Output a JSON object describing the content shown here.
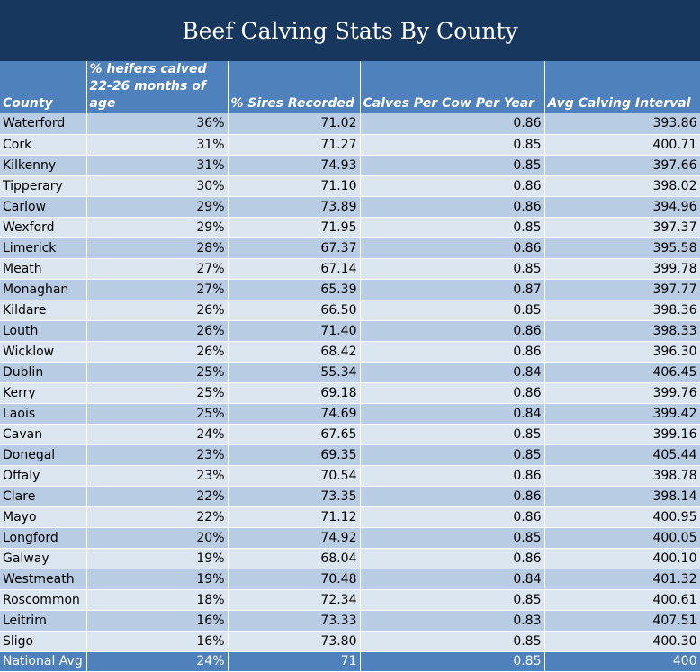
{
  "title": "Beef Calving Stats By County",
  "chart_data": {
    "type": "table",
    "title": "Beef Calving Stats By County",
    "columns": [
      "County",
      "% heifers calved 22-26 months of age",
      "% Sires Recorded",
      "Calves Per Cow Per Year",
      "Avg Calving Interval"
    ],
    "rows": [
      [
        "Waterford",
        "36%",
        "71.02",
        "0.86",
        "393.86"
      ],
      [
        "Cork",
        "31%",
        "71.27",
        "0.85",
        "400.71"
      ],
      [
        "Kilkenny",
        "31%",
        "74.93",
        "0.85",
        "397.66"
      ],
      [
        "Tipperary",
        "30%",
        "71.10",
        "0.86",
        "398.02"
      ],
      [
        "Carlow",
        "29%",
        "73.89",
        "0.86",
        "394.96"
      ],
      [
        "Wexford",
        "29%",
        "71.95",
        "0.85",
        "397.37"
      ],
      [
        "Limerick",
        "28%",
        "67.37",
        "0.86",
        "395.58"
      ],
      [
        "Meath",
        "27%",
        "67.14",
        "0.85",
        "399.78"
      ],
      [
        "Monaghan",
        "27%",
        "65.39",
        "0.87",
        "397.77"
      ],
      [
        "Kildare",
        "26%",
        "66.50",
        "0.85",
        "398.36"
      ],
      [
        "Louth",
        "26%",
        "71.40",
        "0.86",
        "398.33"
      ],
      [
        "Wicklow",
        "26%",
        "68.42",
        "0.86",
        "396.30"
      ],
      [
        "Dublin",
        "25%",
        "55.34",
        "0.84",
        "406.45"
      ],
      [
        "Kerry",
        "25%",
        "69.18",
        "0.86",
        "399.76"
      ],
      [
        "Laois",
        "25%",
        "74.69",
        "0.84",
        "399.42"
      ],
      [
        "Cavan",
        "24%",
        "67.65",
        "0.85",
        "399.16"
      ],
      [
        "Donegal",
        "23%",
        "69.35",
        "0.85",
        "405.44"
      ],
      [
        "Offaly",
        "23%",
        "70.54",
        "0.86",
        "398.78"
      ],
      [
        "Clare",
        "22%",
        "73.35",
        "0.86",
        "398.14"
      ],
      [
        "Mayo",
        "22%",
        "71.12",
        "0.86",
        "400.95"
      ],
      [
        "Longford",
        "20%",
        "74.92",
        "0.85",
        "400.05"
      ],
      [
        "Galway",
        "19%",
        "68.04",
        "0.86",
        "400.10"
      ],
      [
        "Westmeath",
        "19%",
        "70.48",
        "0.84",
        "401.32"
      ],
      [
        "Roscommon",
        "18%",
        "72.34",
        "0.85",
        "400.61"
      ],
      [
        "Leitrim",
        "16%",
        "73.33",
        "0.83",
        "407.51"
      ],
      [
        "Sligo",
        "16%",
        "73.80",
        "0.85",
        "400.30"
      ]
    ],
    "footer": [
      "National Avg",
      "24%",
      "71",
      "0.85",
      "400"
    ],
    "colors": {
      "title_bg": "#17375e",
      "header_bg": "#4f81bd",
      "row_dark": "#b8cce4",
      "row_light": "#dce6f1"
    }
  }
}
